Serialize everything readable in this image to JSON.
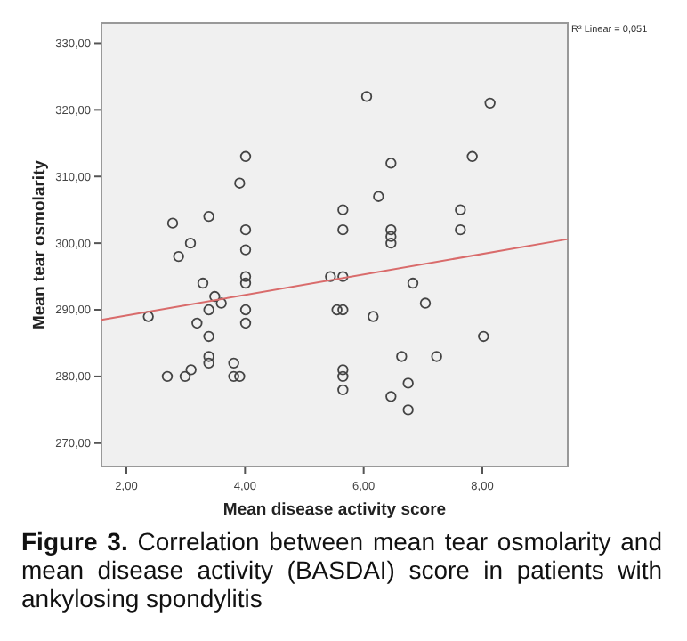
{
  "chart_data": {
    "type": "scatter",
    "title": "Figure 3.",
    "subtitle": "Correlation between mean tear osmolarity and mean disease activity (BASDAI) score  in patients with ankylosing spondylitis",
    "xlabel": "Mean disease activity score",
    "ylabel": "Mean tear osmolarity",
    "annotations": [
      "R² Linear = 0,051"
    ],
    "grid": false,
    "xlim": [
      1.58,
      9.44
    ],
    "ylim": [
      266.5,
      333
    ],
    "xticks": [
      {
        "value": 2,
        "label": "2,00"
      },
      {
        "value": 4,
        "label": "4,00"
      },
      {
        "value": 6,
        "label": "6,00"
      },
      {
        "value": 8,
        "label": "8,00"
      }
    ],
    "yticks": [
      {
        "value": 270,
        "label": "270,00"
      },
      {
        "value": 280,
        "label": "280,00"
      },
      {
        "value": 290,
        "label": "290,00"
      },
      {
        "value": 300,
        "label": "300,00"
      },
      {
        "value": 310,
        "label": "310,00"
      },
      {
        "value": 320,
        "label": "320,00"
      },
      {
        "value": 330,
        "label": "330,00"
      }
    ],
    "series": [
      {
        "marker": "circle",
        "color": "#444444",
        "x": [
          2.37,
          2.69,
          2.78,
          2.88,
          2.99,
          3.08,
          3.09,
          3.19,
          3.29,
          3.39,
          3.39,
          3.39,
          3.39,
          3.39,
          3.49,
          3.6,
          3.81,
          3.81,
          3.91,
          3.91,
          4.01,
          4.01,
          4.01,
          4.01,
          4.01,
          4.01,
          4.01,
          5.44,
          5.55,
          5.65,
          5.65,
          5.65,
          5.65,
          5.65,
          5.65,
          5.65,
          6.05,
          8.13,
          7.83,
          6.46,
          6.25,
          7.63,
          7.63,
          6.46,
          6.46,
          6.46,
          6.83,
          7.04,
          6.16,
          8.02,
          6.64,
          7.23,
          6.75,
          6.46,
          6.75
        ],
        "values": [
          289,
          280,
          303,
          298,
          280,
          300,
          281,
          288,
          294,
          304,
          290,
          286,
          283,
          282,
          292,
          291,
          282,
          280,
          280,
          309,
          313,
          302,
          299,
          295,
          294,
          290,
          288,
          295,
          290,
          290,
          305,
          302,
          295,
          281,
          280,
          278,
          322,
          321,
          313,
          312,
          307,
          305,
          302,
          302,
          301,
          300,
          294,
          291,
          289,
          286,
          283,
          283,
          279,
          277,
          275
        ]
      },
      {
        "type": "line",
        "color": "#d96b6b",
        "x": [
          1.58,
          9.44
        ],
        "values": [
          288.5,
          300.6
        ]
      }
    ]
  }
}
